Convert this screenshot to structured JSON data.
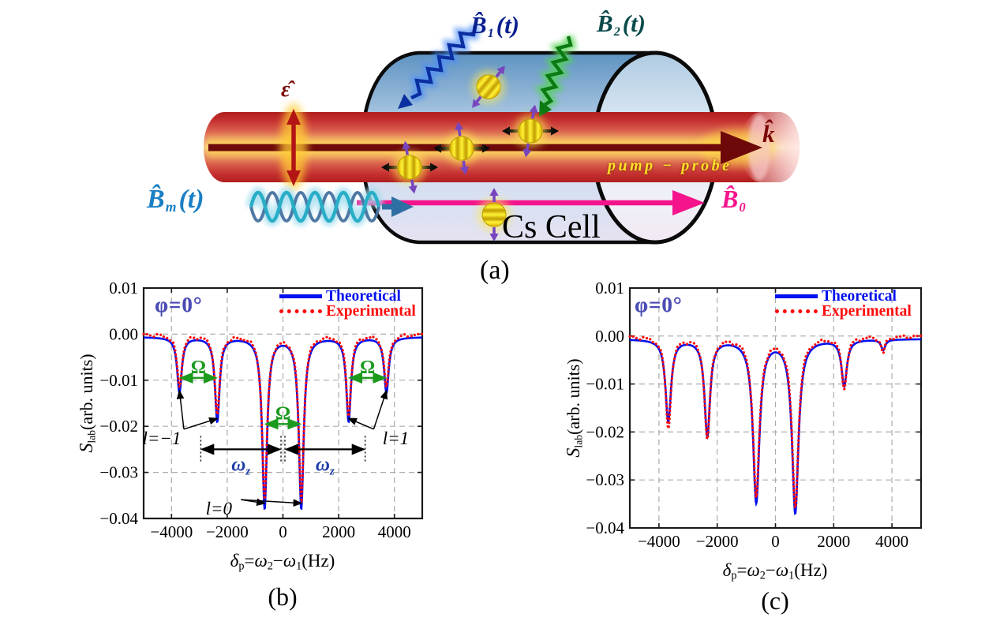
{
  "figure": {
    "panel_a": "(a)",
    "background": "#ffffff"
  },
  "diagram": {
    "labels": {
      "b1": {
        "main": "B̂",
        "sub": "1",
        "arg": "(t)"
      },
      "b2": {
        "main": "B̂",
        "sub": "2",
        "arg": "(t)"
      },
      "bm": {
        "main": "B̂",
        "sub": "m",
        "arg": "(t)"
      },
      "b0": {
        "main": "B̂",
        "sub": "0"
      },
      "epsilon": "ε̂",
      "k": "k̂",
      "beam": "pump − probe",
      "cell": "Cs Cell"
    },
    "colors": {
      "b1_label": "#0A1F8F",
      "b2_label": "#0A4A4A",
      "bm_label": "#1B7FC4",
      "b0_label": "#F5148C",
      "dark_red": "#7A0505",
      "beam_yellow": "#FFE227",
      "purple_spin": "#7846BE",
      "atom_yellow": "#FFF335"
    }
  },
  "axis": {
    "x": {
      "sym": "δ",
      "p": "p",
      "eq": "=",
      "omega": "ω",
      "s2": "2",
      "minus": "−",
      "s1": "1",
      "unit": "(Hz)"
    },
    "y": {
      "sym": "S",
      "sub": "lab",
      "unit": "(arb. units)"
    }
  },
  "chart_data": [
    {
      "id": "b",
      "panel": "(b)",
      "type": "line",
      "phi_annotation": "φ=0°",
      "phi_color": "#4A4AB4",
      "xlabel": "δp=ω2−ω1(Hz)",
      "ylabel": "Slab(arb. units)",
      "xlim": [
        -5000,
        5000
      ],
      "ylim": [
        -0.04,
        0.01
      ],
      "grid": true,
      "xticks": [
        {
          "v": -4000,
          "t": "−4000"
        },
        {
          "v": -2000,
          "t": "−2000"
        },
        {
          "v": 0,
          "t": "0"
        },
        {
          "v": 2000,
          "t": "2000"
        },
        {
          "v": 4000,
          "t": "4000"
        }
      ],
      "yticks": [
        {
          "v": 0.01,
          "t": "0.01"
        },
        {
          "v": 0.0,
          "t": "0.00"
        },
        {
          "v": -0.01,
          "t": "−0.01"
        },
        {
          "v": -0.02,
          "t": "−0.02"
        },
        {
          "v": -0.03,
          "t": "−0.03"
        },
        {
          "v": -0.04,
          "t": "−0.04"
        }
      ],
      "legend": [
        {
          "label": "Theoretical",
          "color": "#0010EE",
          "style": "solid"
        },
        {
          "label": "Experimental",
          "color": "#FF0A0A",
          "style": "dotted"
        }
      ],
      "series": [
        {
          "name": "Theoretical",
          "color": "#0010EE",
          "style": "solid",
          "baseline": -0.0006,
          "dips": [
            {
              "c": -3714,
              "d": -0.012,
              "w": 100
            },
            {
              "c": -2357,
              "d": -0.0182,
              "w": 100
            },
            {
              "c": -657,
              "d": -0.037,
              "w": 105
            },
            {
              "c": 657,
              "d": -0.037,
              "w": 105
            },
            {
              "c": 2357,
              "d": -0.0182,
              "w": 100
            },
            {
              "c": 3714,
              "d": -0.012,
              "w": 100
            }
          ]
        },
        {
          "name": "Experimental",
          "color": "#FF0A0A",
          "style": "dotted",
          "baseline": 0,
          "noise": 0.0004,
          "dips": [
            {
              "c": -3714,
              "d": -0.0113,
              "w": 105
            },
            {
              "c": -2357,
              "d": -0.0174,
              "w": 105
            },
            {
              "c": -657,
              "d": -0.0356,
              "w": 110
            },
            {
              "c": 657,
              "d": -0.0356,
              "w": 110
            },
            {
              "c": 2357,
              "d": -0.0174,
              "w": 105
            },
            {
              "c": 3714,
              "d": -0.0113,
              "w": 105
            }
          ]
        }
      ],
      "annotations": {
        "colors": {
          "omega": "#1B9A1E",
          "omega_z": "#1E3CA8",
          "pointer": "#000000"
        },
        "omega_spans": [
          {
            "label": "Ω",
            "x1": -3714,
            "x2": -2357,
            "y": -0.0095
          },
          {
            "label": "Ω",
            "x1": -657,
            "x2": 657,
            "y": -0.0195
          },
          {
            "label": "Ω",
            "x1": 2357,
            "x2": 3714,
            "y": -0.0095
          }
        ],
        "omega_z_spans": [
          {
            "main": "ω",
            "sub": "z",
            "x1": -2950,
            "x2": -70,
            "y": -0.025
          },
          {
            "main": "ω",
            "sub": "z",
            "x1": 70,
            "x2": 2950,
            "y": -0.025
          }
        ],
        "l_pointers": [
          {
            "label": "l=−1",
            "lx": -4350,
            "ly": -0.0225,
            "targets": [
              [
                -3714,
                -0.0118
              ],
              [
                -2357,
                -0.0178
              ]
            ]
          },
          {
            "label": "l=1",
            "lx": 4050,
            "ly": -0.0225,
            "targets": [
              [
                3714,
                -0.0118
              ],
              [
                2357,
                -0.0178
              ]
            ]
          },
          {
            "label": "l=0",
            "lx": -2300,
            "ly": -0.0378,
            "targets": [
              [
                -657,
                -0.0362
              ],
              [
                657,
                -0.0362
              ]
            ]
          }
        ]
      }
    },
    {
      "id": "c",
      "panel": "(c)",
      "type": "line",
      "phi_annotation": "φ=0°",
      "phi_color": "#4A4AB4",
      "xlabel": "δp=ω2−ω1(Hz)",
      "ylabel": "Slab(arb. units)",
      "xlim": [
        -5000,
        5000
      ],
      "ylim": [
        -0.04,
        0.01
      ],
      "grid": true,
      "xticks": [
        {
          "v": -4000,
          "t": "−4000"
        },
        {
          "v": -2000,
          "t": "−2000"
        },
        {
          "v": 0,
          "t": "0"
        },
        {
          "v": 2000,
          "t": "2000"
        },
        {
          "v": 4000,
          "t": "4000"
        }
      ],
      "yticks": [
        {
          "v": 0.01,
          "t": "0.01"
        },
        {
          "v": 0.0,
          "t": "0.00"
        },
        {
          "v": -0.01,
          "t": "−0.01"
        },
        {
          "v": -0.02,
          "t": "−0.02"
        },
        {
          "v": -0.03,
          "t": "−0.03"
        },
        {
          "v": -0.04,
          "t": "−0.04"
        }
      ],
      "legend": [
        {
          "label": "Theoretical",
          "color": "#0010EE",
          "style": "solid"
        },
        {
          "label": "Experimental",
          "color": "#FF0A0A",
          "style": "dotted"
        }
      ],
      "series": [
        {
          "name": "Theoretical",
          "color": "#0010EE",
          "style": "solid",
          "baseline": -0.0006,
          "dips": [
            {
              "c": -3680,
              "d": -0.017,
              "w": 115
            },
            {
              "c": -2340,
              "d": -0.02,
              "w": 115
            },
            {
              "c": -660,
              "d": -0.0338,
              "w": 135
            },
            {
              "c": 680,
              "d": -0.036,
              "w": 135
            },
            {
              "c": 2360,
              "d": -0.0096,
              "w": 110
            },
            {
              "c": 3700,
              "d": -0.0022,
              "w": 85
            }
          ]
        },
        {
          "name": "Experimental",
          "color": "#FF0A0A",
          "style": "dotted",
          "baseline": 0,
          "noise": 0.0004,
          "dips": [
            {
              "c": -3680,
              "d": -0.0188,
              "w": 115
            },
            {
              "c": -2340,
              "d": -0.0213,
              "w": 115
            },
            {
              "c": -660,
              "d": -0.0332,
              "w": 135
            },
            {
              "c": 680,
              "d": -0.0352,
              "w": 135
            },
            {
              "c": 2360,
              "d": -0.0106,
              "w": 110
            },
            {
              "c": 3700,
              "d": -0.0034,
              "w": 85
            }
          ]
        }
      ],
      "annotations": null
    }
  ]
}
